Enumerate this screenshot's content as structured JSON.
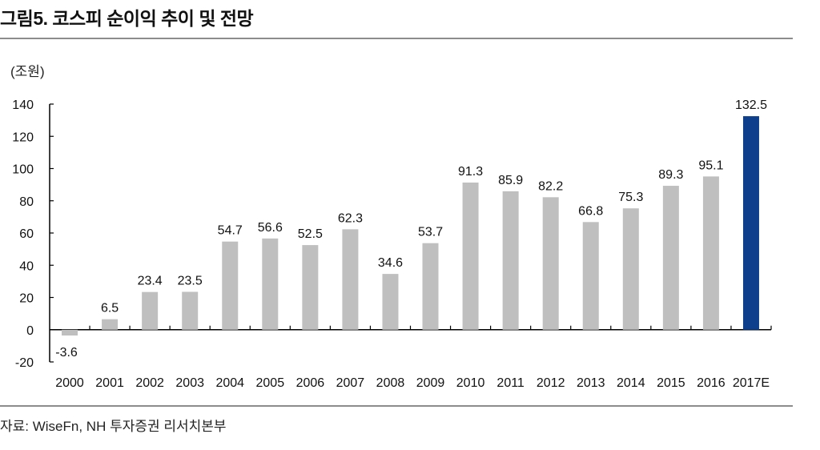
{
  "title": "그림5. 코스피 순이익 추이 및 전망",
  "source": "자료: WiseFn, NH 투자증권 리서치본부",
  "chart_data": {
    "type": "bar",
    "title": "그림5. 코스피 순이익 추이 및 전망",
    "ylabel": "(조원)",
    "xlabel": "",
    "categories": [
      "2000",
      "2001",
      "2002",
      "2003",
      "2004",
      "2005",
      "2006",
      "2007",
      "2008",
      "2009",
      "2010",
      "2011",
      "2012",
      "2013",
      "2014",
      "2015",
      "2016",
      "2017E"
    ],
    "values": [
      -3.6,
      6.5,
      23.4,
      23.5,
      54.7,
      56.6,
      52.5,
      62.3,
      34.6,
      53.7,
      91.3,
      85.9,
      82.2,
      66.8,
      75.3,
      89.3,
      95.1,
      132.5
    ],
    "data_labels": [
      "-3.6",
      "6.5",
      "23.4",
      "23.5",
      "54.7",
      "56.6",
      "52.5",
      "62.3",
      "34.6",
      "53.7",
      "91.3",
      "85.9",
      "82.2",
      "66.8",
      "75.3",
      "89.3",
      "95.1",
      "132.5"
    ],
    "ylim": [
      -20,
      140
    ],
    "yticks": [
      -20,
      0,
      20,
      40,
      60,
      80,
      100,
      120,
      140
    ],
    "grid": false,
    "colors": {
      "actual": "#bfbfbf",
      "forecast": "#0e3f8c"
    },
    "highlight_category": "2017E"
  }
}
